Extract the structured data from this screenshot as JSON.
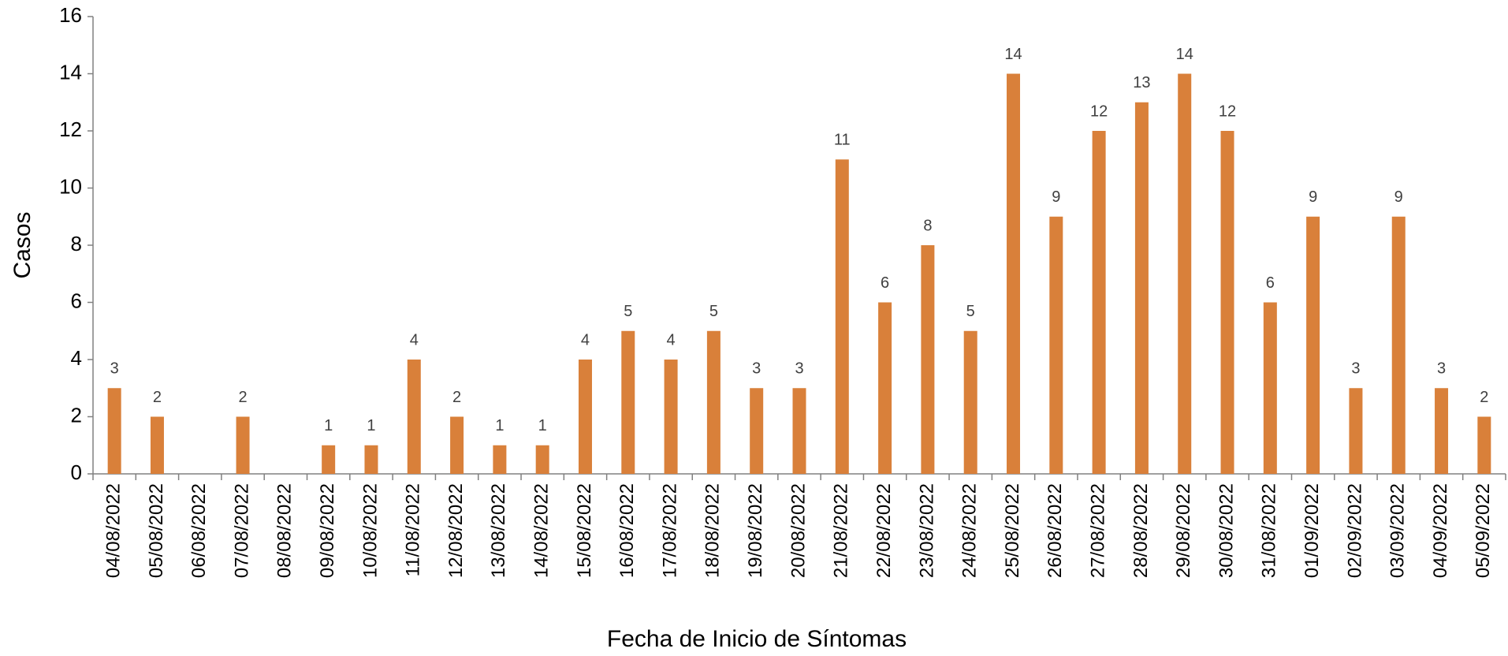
{
  "chart_data": {
    "type": "bar",
    "x_label": "Fecha de Inicio de Síntomas",
    "y_label": "Casos",
    "categories": [
      "04/08/2022",
      "05/08/2022",
      "06/08/2022",
      "07/08/2022",
      "08/08/2022",
      "09/08/2022",
      "10/08/2022",
      "11/08/2022",
      "12/08/2022",
      "13/08/2022",
      "14/08/2022",
      "15/08/2022",
      "16/08/2022",
      "17/08/2022",
      "18/08/2022",
      "19/08/2022",
      "20/08/2022",
      "21/08/2022",
      "22/08/2022",
      "23/08/2022",
      "24/08/2022",
      "25/08/2022",
      "26/08/2022",
      "27/08/2022",
      "28/08/2022",
      "29/08/2022",
      "30/08/2022",
      "31/08/2022",
      "01/09/2022",
      "02/09/2022",
      "03/09/2022",
      "04/09/2022",
      "05/09/2022"
    ],
    "values": [
      3,
      2,
      0,
      2,
      0,
      1,
      1,
      4,
      2,
      1,
      1,
      4,
      5,
      4,
      5,
      3,
      3,
      11,
      6,
      8,
      5,
      14,
      9,
      12,
      13,
      14,
      12,
      6,
      9,
      3,
      9,
      3,
      2
    ],
    "color": "#d9803a",
    "ylim": [
      0,
      16
    ],
    "yticks": [
      0,
      2,
      4,
      6,
      8,
      10,
      12,
      14,
      16
    ],
    "grid": false
  }
}
